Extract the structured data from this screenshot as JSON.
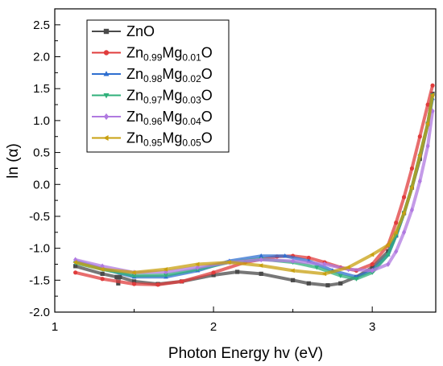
{
  "chart_data": {
    "type": "line",
    "title": "",
    "xlabel": "Photon Energy hv (eV)",
    "ylabel": "ln (α)",
    "xlim": [
      1.0,
      3.4
    ],
    "ylim": [
      -2.0,
      2.75
    ],
    "x_ticks": [
      1,
      2,
      3
    ],
    "x_tick_labels": [
      "1",
      "2",
      "3"
    ],
    "y_ticks": [
      -2.0,
      -1.5,
      -1.0,
      -0.5,
      0.0,
      0.5,
      1.0,
      1.5,
      2.0,
      2.5
    ],
    "y_tick_labels": [
      "-2.0",
      "-1.5",
      "-1.0",
      "-0.5",
      "0.0",
      "0.5",
      "1.0",
      "1.5",
      "2.0",
      "2.5"
    ],
    "grid": false,
    "legend_position": "top-left",
    "series": [
      {
        "name": "ZnO",
        "color": "#4a4a4a",
        "marker": "square",
        "legend_parts": [
          {
            "t": "ZnO"
          }
        ],
        "x": [
          1.13,
          1.3,
          1.39,
          1.4,
          1.41,
          1.5,
          1.65,
          1.8,
          2.0,
          2.15,
          2.3,
          2.5,
          2.6,
          2.72,
          2.8,
          2.9,
          3.0,
          3.1,
          3.15,
          3.2,
          3.25,
          3.3,
          3.35,
          3.38
        ],
        "y": [
          -1.28,
          -1.4,
          -1.45,
          -1.55,
          -1.45,
          -1.52,
          -1.56,
          -1.52,
          -1.42,
          -1.37,
          -1.4,
          -1.5,
          -1.55,
          -1.58,
          -1.55,
          -1.45,
          -1.3,
          -1.05,
          -0.8,
          -0.45,
          -0.05,
          0.4,
          0.95,
          1.42
        ]
      },
      {
        "name": "Zn0.99Mg0.01O",
        "color": "#e03c3c",
        "marker": "circle",
        "legend_parts": [
          {
            "t": "Zn"
          },
          {
            "t": "0.99",
            "sub": true
          },
          {
            "t": "Mg"
          },
          {
            "t": "0.01",
            "sub": true
          },
          {
            "t": "O"
          }
        ],
        "x": [
          1.13,
          1.3,
          1.5,
          1.65,
          1.8,
          2.0,
          2.2,
          2.4,
          2.5,
          2.6,
          2.7,
          2.8,
          2.9,
          3.0,
          3.1,
          3.15,
          3.2,
          3.25,
          3.3,
          3.35,
          3.38
        ],
        "y": [
          -1.38,
          -1.48,
          -1.56,
          -1.57,
          -1.52,
          -1.38,
          -1.22,
          -1.13,
          -1.12,
          -1.15,
          -1.22,
          -1.3,
          -1.35,
          -1.25,
          -0.95,
          -0.6,
          -0.2,
          0.25,
          0.75,
          1.25,
          1.55
        ]
      },
      {
        "name": "Zn0.98Mg0.02O",
        "color": "#2f6fd0",
        "marker": "triangle-up",
        "legend_parts": [
          {
            "t": "Zn"
          },
          {
            "t": "0.98",
            "sub": true
          },
          {
            "t": "Mg"
          },
          {
            "t": "0.02",
            "sub": true
          },
          {
            "t": "O"
          }
        ],
        "x": [
          1.13,
          1.3,
          1.5,
          1.7,
          1.9,
          2.1,
          2.3,
          2.45,
          2.6,
          2.75,
          2.9,
          3.0,
          3.1,
          3.15,
          3.2,
          3.25,
          3.3,
          3.35,
          3.38
        ],
        "y": [
          -1.2,
          -1.32,
          -1.45,
          -1.45,
          -1.35,
          -1.2,
          -1.12,
          -1.12,
          -1.2,
          -1.35,
          -1.45,
          -1.35,
          -1.1,
          -0.8,
          -0.45,
          -0.05,
          0.45,
          0.95,
          1.35
        ]
      },
      {
        "name": "Zn0.97Mg0.03O",
        "color": "#2fb07a",
        "marker": "triangle-down",
        "legend_parts": [
          {
            "t": "Zn"
          },
          {
            "t": "0.97",
            "sub": true
          },
          {
            "t": "Mg"
          },
          {
            "t": "0.03",
            "sub": true
          },
          {
            "t": "O"
          }
        ],
        "x": [
          1.13,
          1.3,
          1.5,
          1.7,
          1.9,
          2.1,
          2.3,
          2.5,
          2.65,
          2.8,
          2.9,
          3.0,
          3.1,
          3.15,
          3.2,
          3.25,
          3.3,
          3.35,
          3.38
        ],
        "y": [
          -1.23,
          -1.33,
          -1.43,
          -1.42,
          -1.33,
          -1.22,
          -1.17,
          -1.22,
          -1.3,
          -1.43,
          -1.48,
          -1.38,
          -1.1,
          -0.8,
          -0.45,
          -0.05,
          0.45,
          0.95,
          1.4
        ]
      },
      {
        "name": "Zn0.96Mg0.04O",
        "color": "#b07ae0",
        "marker": "diamond",
        "legend_parts": [
          {
            "t": "Zn"
          },
          {
            "t": "0.96",
            "sub": true
          },
          {
            "t": "Mg"
          },
          {
            "t": "0.04",
            "sub": true
          },
          {
            "t": "O"
          }
        ],
        "x": [
          1.13,
          1.3,
          1.5,
          1.7,
          1.9,
          2.1,
          2.3,
          2.5,
          2.7,
          2.85,
          3.0,
          3.1,
          3.15,
          3.2,
          3.25,
          3.3,
          3.35,
          3.38
        ],
        "y": [
          -1.18,
          -1.28,
          -1.38,
          -1.37,
          -1.3,
          -1.22,
          -1.18,
          -1.2,
          -1.25,
          -1.33,
          -1.35,
          -1.25,
          -1.05,
          -0.75,
          -0.4,
          0.05,
          0.6,
          1.15
        ]
      },
      {
        "name": "Zn0.95Mg0.05O",
        "color": "#c8a010",
        "marker": "triangle-left",
        "legend_parts": [
          {
            "t": "Zn"
          },
          {
            "t": "0.95",
            "sub": true
          },
          {
            "t": "Mg"
          },
          {
            "t": "0.05",
            "sub": true
          },
          {
            "t": "O"
          }
        ],
        "x": [
          1.13,
          1.3,
          1.5,
          1.7,
          1.9,
          2.1,
          2.3,
          2.5,
          2.7,
          2.85,
          3.0,
          3.1,
          3.15,
          3.2,
          3.25,
          3.3,
          3.35,
          3.38
        ],
        "y": [
          -1.22,
          -1.33,
          -1.38,
          -1.33,
          -1.25,
          -1.22,
          -1.27,
          -1.35,
          -1.4,
          -1.3,
          -1.1,
          -0.95,
          -0.75,
          -0.45,
          -0.05,
          0.45,
          0.95,
          1.4
        ]
      }
    ]
  }
}
